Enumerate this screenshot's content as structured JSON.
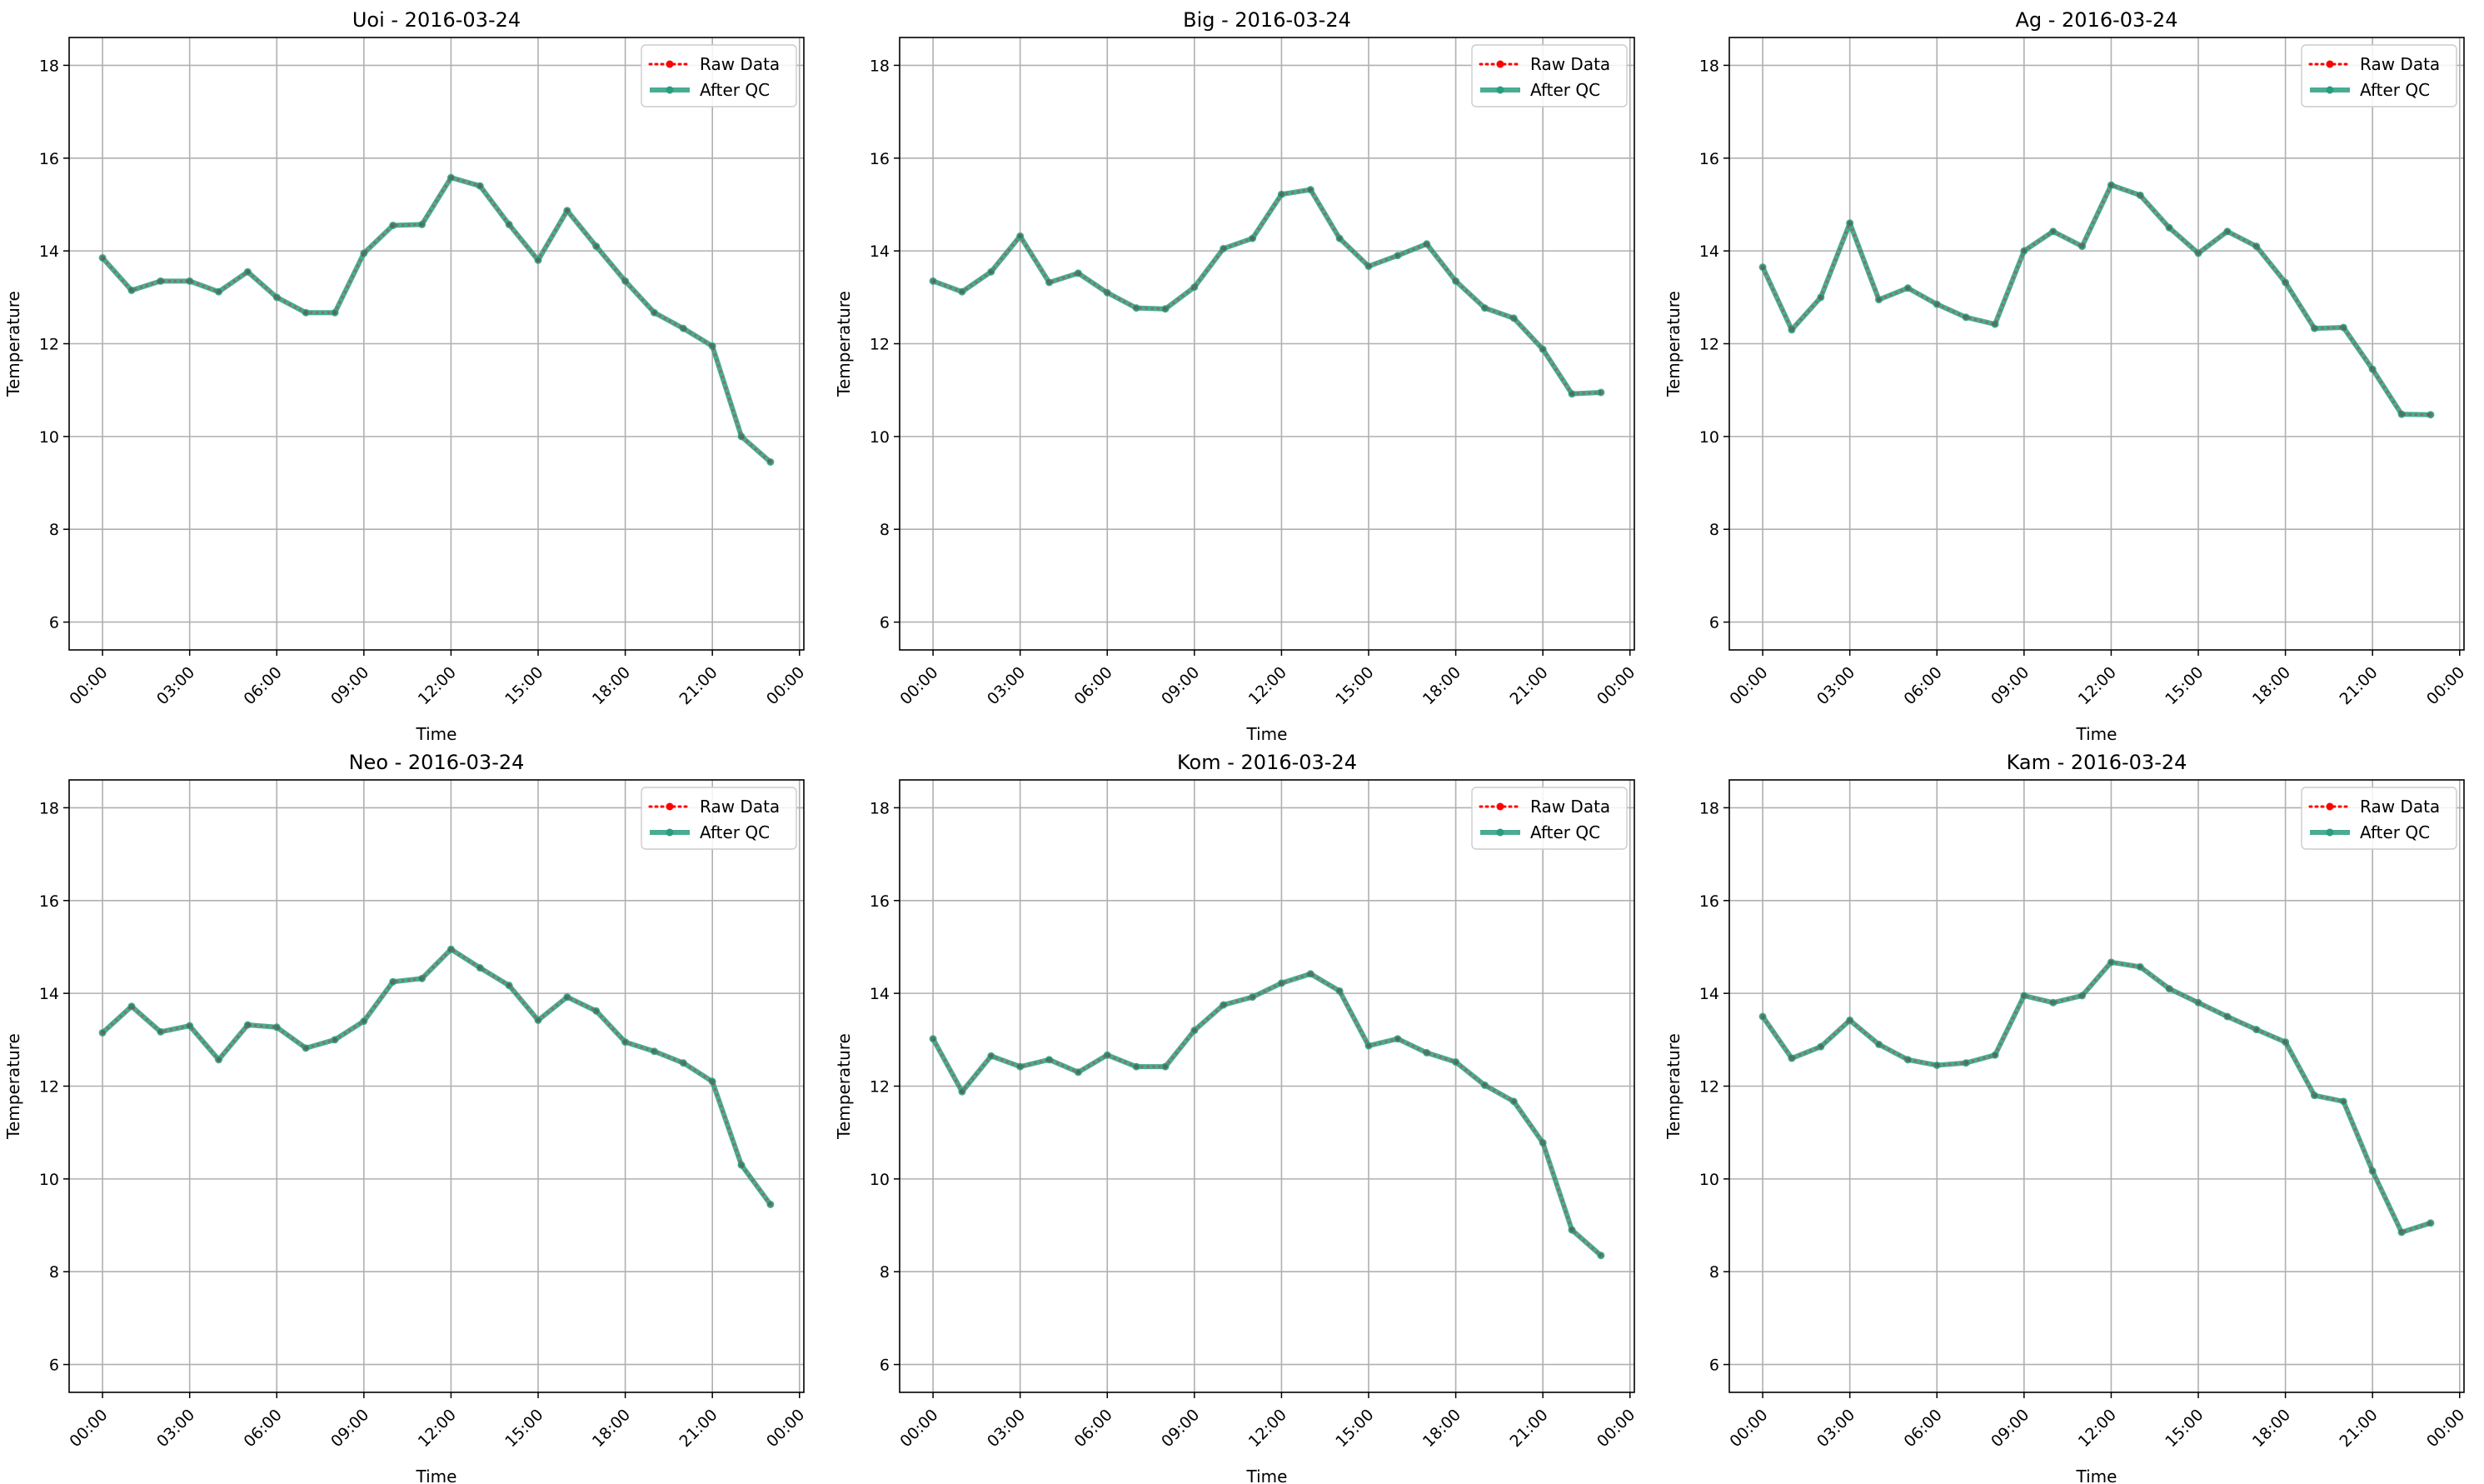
{
  "chart_data": [
    {
      "type": "line",
      "title": "Uoi - 2016-03-24",
      "xlabel": "Time",
      "ylabel": "Temperature",
      "ylim": [
        5.4,
        18.6
      ],
      "yticks": [
        6,
        8,
        10,
        12,
        14,
        16,
        18
      ],
      "xlim": [
        "00:00",
        "23:00"
      ],
      "xticks": [
        "00:00",
        "03:00",
        "06:00",
        "09:00",
        "12:00",
        "15:00",
        "18:00",
        "21:00",
        "00:00"
      ],
      "grid": true,
      "legend": "top-right",
      "x": [
        "00:00",
        "01:00",
        "02:00",
        "03:00",
        "04:00",
        "05:00",
        "06:00",
        "07:00",
        "08:00",
        "09:00",
        "10:00",
        "11:00",
        "12:00",
        "13:00",
        "14:00",
        "15:00",
        "16:00",
        "17:00",
        "18:00",
        "19:00",
        "20:00",
        "21:00",
        "22:00",
        "23:00"
      ],
      "series": [
        {
          "name": "Raw Data",
          "color": "#ff0000",
          "values": [
            13.85,
            13.15,
            13.35,
            13.35,
            13.12,
            13.55,
            13.0,
            12.67,
            12.67,
            13.95,
            14.55,
            14.57,
            15.58,
            15.4,
            14.57,
            13.8,
            14.87,
            14.1,
            13.35,
            12.67,
            12.33,
            11.95,
            10.0,
            9.45
          ]
        },
        {
          "name": "After QC",
          "color": "#2a9d7f",
          "values": [
            13.85,
            13.15,
            13.35,
            13.35,
            13.12,
            13.55,
            13.0,
            12.67,
            12.67,
            13.95,
            14.55,
            14.57,
            15.58,
            15.4,
            14.57,
            13.8,
            14.87,
            14.1,
            13.35,
            12.67,
            12.33,
            11.95,
            10.0,
            9.45
          ]
        }
      ]
    },
    {
      "type": "line",
      "title": "Big - 2016-03-24",
      "xlabel": "Time",
      "ylabel": "Temperature",
      "ylim": [
        5.4,
        18.6
      ],
      "yticks": [
        6,
        8,
        10,
        12,
        14,
        16,
        18
      ],
      "xlim": [
        "00:00",
        "23:00"
      ],
      "xticks": [
        "00:00",
        "03:00",
        "06:00",
        "09:00",
        "12:00",
        "15:00",
        "18:00",
        "21:00",
        "00:00"
      ],
      "grid": true,
      "legend": "top-right",
      "x": [
        "00:00",
        "01:00",
        "02:00",
        "03:00",
        "04:00",
        "05:00",
        "06:00",
        "07:00",
        "08:00",
        "09:00",
        "10:00",
        "11:00",
        "12:00",
        "13:00",
        "14:00",
        "15:00",
        "16:00",
        "17:00",
        "18:00",
        "19:00",
        "20:00",
        "21:00",
        "22:00",
        "23:00"
      ],
      "series": [
        {
          "name": "Raw Data",
          "color": "#ff0000",
          "values": [
            13.35,
            13.12,
            13.55,
            14.32,
            13.32,
            13.52,
            13.1,
            12.77,
            12.75,
            13.22,
            14.05,
            14.27,
            15.22,
            15.32,
            14.27,
            13.67,
            13.9,
            14.15,
            13.35,
            12.77,
            12.55,
            11.88,
            10.92,
            10.95
          ]
        },
        {
          "name": "After QC",
          "color": "#2a9d7f",
          "values": [
            13.35,
            13.12,
            13.55,
            14.32,
            13.32,
            13.52,
            13.1,
            12.77,
            12.75,
            13.22,
            14.05,
            14.27,
            15.22,
            15.32,
            14.27,
            13.67,
            13.9,
            14.15,
            13.35,
            12.77,
            12.55,
            11.88,
            10.92,
            10.95
          ]
        }
      ]
    },
    {
      "type": "line",
      "title": "Ag - 2016-03-24",
      "xlabel": "Time",
      "ylabel": "Temperature",
      "ylim": [
        5.4,
        18.6
      ],
      "yticks": [
        6,
        8,
        10,
        12,
        14,
        16,
        18
      ],
      "xlim": [
        "00:00",
        "23:00"
      ],
      "xticks": [
        "00:00",
        "03:00",
        "06:00",
        "09:00",
        "12:00",
        "15:00",
        "18:00",
        "21:00",
        "00:00"
      ],
      "grid": true,
      "legend": "top-right",
      "x": [
        "00:00",
        "01:00",
        "02:00",
        "03:00",
        "04:00",
        "05:00",
        "06:00",
        "07:00",
        "08:00",
        "09:00",
        "10:00",
        "11:00",
        "12:00",
        "13:00",
        "14:00",
        "15:00",
        "16:00",
        "17:00",
        "18:00",
        "19:00",
        "20:00",
        "21:00",
        "22:00",
        "23:00"
      ],
      "series": [
        {
          "name": "Raw Data",
          "color": "#ff0000",
          "values": [
            13.65,
            12.3,
            13.0,
            14.6,
            12.95,
            13.2,
            12.85,
            12.57,
            12.42,
            14.0,
            14.42,
            14.1,
            15.42,
            15.2,
            14.5,
            13.95,
            14.42,
            14.1,
            13.32,
            12.33,
            12.35,
            11.45,
            10.48,
            10.47
          ]
        },
        {
          "name": "After QC",
          "color": "#2a9d7f",
          "values": [
            13.65,
            12.3,
            13.0,
            14.6,
            12.95,
            13.2,
            12.85,
            12.57,
            12.42,
            14.0,
            14.42,
            14.1,
            15.42,
            15.2,
            14.5,
            13.95,
            14.42,
            14.1,
            13.32,
            12.33,
            12.35,
            11.45,
            10.48,
            10.47
          ]
        }
      ]
    },
    {
      "type": "line",
      "title": "Neo - 2016-03-24",
      "xlabel": "Time",
      "ylabel": "Temperature",
      "ylim": [
        5.4,
        18.6
      ],
      "yticks": [
        6,
        8,
        10,
        12,
        14,
        16,
        18
      ],
      "xlim": [
        "00:00",
        "23:00"
      ],
      "xticks": [
        "00:00",
        "03:00",
        "06:00",
        "09:00",
        "12:00",
        "15:00",
        "18:00",
        "21:00",
        "00:00"
      ],
      "grid": true,
      "legend": "top-right",
      "x": [
        "00:00",
        "01:00",
        "02:00",
        "03:00",
        "04:00",
        "05:00",
        "06:00",
        "07:00",
        "08:00",
        "09:00",
        "10:00",
        "11:00",
        "12:00",
        "13:00",
        "14:00",
        "15:00",
        "16:00",
        "17:00",
        "18:00",
        "19:00",
        "20:00",
        "21:00",
        "22:00",
        "23:00"
      ],
      "series": [
        {
          "name": "Raw Data",
          "color": "#ff0000",
          "values": [
            13.15,
            13.72,
            13.17,
            13.3,
            12.57,
            13.32,
            13.27,
            12.82,
            13.0,
            13.4,
            14.25,
            14.32,
            14.95,
            14.55,
            14.17,
            13.42,
            13.92,
            13.62,
            12.95,
            12.75,
            12.5,
            12.1,
            10.3,
            9.45
          ]
        },
        {
          "name": "After QC",
          "color": "#2a9d7f",
          "values": [
            13.15,
            13.72,
            13.17,
            13.3,
            12.57,
            13.32,
            13.27,
            12.82,
            13.0,
            13.4,
            14.25,
            14.32,
            14.95,
            14.55,
            14.17,
            13.42,
            13.92,
            13.62,
            12.95,
            12.75,
            12.5,
            12.1,
            10.3,
            9.45
          ]
        }
      ]
    },
    {
      "type": "line",
      "title": "Kom - 2016-03-24",
      "xlabel": "Time",
      "ylabel": "Temperature",
      "ylim": [
        5.4,
        18.6
      ],
      "yticks": [
        6,
        8,
        10,
        12,
        14,
        16,
        18
      ],
      "xlim": [
        "00:00",
        "23:00"
      ],
      "xticks": [
        "00:00",
        "03:00",
        "06:00",
        "09:00",
        "12:00",
        "15:00",
        "18:00",
        "21:00",
        "00:00"
      ],
      "grid": true,
      "legend": "top-right",
      "x": [
        "00:00",
        "01:00",
        "02:00",
        "03:00",
        "04:00",
        "05:00",
        "06:00",
        "07:00",
        "08:00",
        "09:00",
        "10:00",
        "11:00",
        "12:00",
        "13:00",
        "14:00",
        "15:00",
        "16:00",
        "17:00",
        "18:00",
        "19:00",
        "20:00",
        "21:00",
        "22:00",
        "23:00"
      ],
      "series": [
        {
          "name": "Raw Data",
          "color": "#ff0000",
          "values": [
            13.02,
            11.88,
            12.65,
            12.42,
            12.57,
            12.3,
            12.67,
            12.42,
            12.42,
            13.2,
            13.75,
            13.92,
            14.22,
            14.42,
            14.05,
            12.87,
            13.02,
            12.72,
            12.52,
            12.02,
            11.67,
            10.78,
            8.9,
            8.35
          ]
        },
        {
          "name": "After QC",
          "color": "#2a9d7f",
          "values": [
            13.02,
            11.88,
            12.65,
            12.42,
            12.57,
            12.3,
            12.67,
            12.42,
            12.42,
            13.2,
            13.75,
            13.92,
            14.22,
            14.42,
            14.05,
            12.87,
            13.02,
            12.72,
            12.52,
            12.02,
            11.67,
            10.78,
            8.9,
            8.35
          ]
        }
      ]
    },
    {
      "type": "line",
      "title": "Kam - 2016-03-24",
      "xlabel": "Time",
      "ylabel": "Temperature",
      "ylim": [
        5.4,
        18.6
      ],
      "yticks": [
        6,
        8,
        10,
        12,
        14,
        16,
        18
      ],
      "xlim": [
        "00:00",
        "23:00"
      ],
      "xticks": [
        "00:00",
        "03:00",
        "06:00",
        "09:00",
        "12:00",
        "15:00",
        "18:00",
        "21:00",
        "00:00"
      ],
      "grid": true,
      "legend": "top-right",
      "x": [
        "00:00",
        "01:00",
        "02:00",
        "03:00",
        "04:00",
        "05:00",
        "06:00",
        "07:00",
        "08:00",
        "09:00",
        "10:00",
        "11:00",
        "12:00",
        "13:00",
        "14:00",
        "15:00",
        "16:00",
        "17:00",
        "18:00",
        "19:00",
        "20:00",
        "21:00",
        "22:00",
        "23:00"
      ],
      "series": [
        {
          "name": "Raw Data",
          "color": "#ff0000",
          "values": [
            13.5,
            12.6,
            12.85,
            13.42,
            12.9,
            12.57,
            12.45,
            12.5,
            12.67,
            13.95,
            13.8,
            13.95,
            14.67,
            14.57,
            14.1,
            13.8,
            13.5,
            13.22,
            12.95,
            11.8,
            11.67,
            10.17,
            8.85,
            9.05
          ]
        },
        {
          "name": "After QC",
          "color": "#2a9d7f",
          "values": [
            13.5,
            12.6,
            12.85,
            13.42,
            12.9,
            12.57,
            12.45,
            12.5,
            12.67,
            13.95,
            13.8,
            13.95,
            14.67,
            14.57,
            14.1,
            13.8,
            13.5,
            13.22,
            12.95,
            11.8,
            11.67,
            10.17,
            8.85,
            9.05
          ]
        }
      ]
    }
  ]
}
